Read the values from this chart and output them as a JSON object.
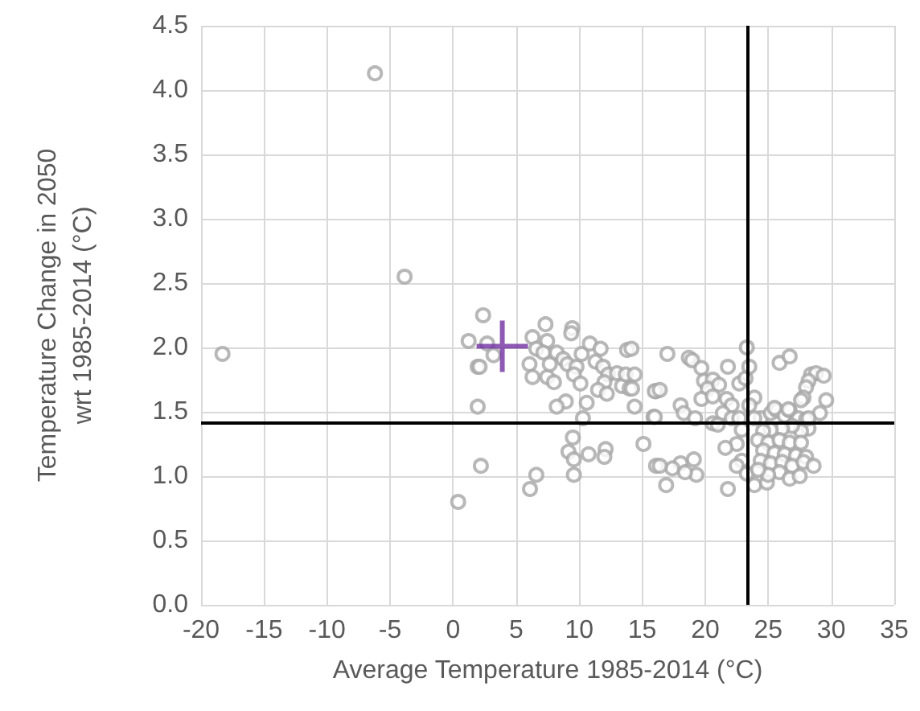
{
  "chart_data": {
    "type": "scatter",
    "xlabel": "Average Temperature 1985-2014 (°C)",
    "ylabel": "Temperature Change in 2050\nwrt 1985-2014 (°C)",
    "xlim": [
      -20,
      35
    ],
    "xticks": [
      -20,
      -15,
      -10,
      -5,
      0,
      5,
      10,
      15,
      20,
      25,
      30,
      35
    ],
    "ylim": [
      0,
      4.5
    ],
    "yticks": [
      {
        "value": 0,
        "label": "0.0"
      },
      0.5,
      {
        "value": 1,
        "label": "1.0"
      },
      1.5,
      {
        "value": 2,
        "label": "2.0"
      },
      2.5,
      {
        "value": 3,
        "label": "3.0"
      },
      3.5,
      {
        "value": 4,
        "label": "4.0"
      },
      4.5
    ],
    "grid": true,
    "marker": "circle",
    "ref_lines": [
      {
        "axis": "x",
        "value": 23.4,
        "color": "#000000"
      },
      {
        "axis": "y",
        "value": 1.41,
        "color": "#000000"
      }
    ],
    "series": [
      {
        "color": "#a6a6a6",
        "x": [
          -6.2,
          -3.85,
          -18.3,
          1.23,
          0.4,
          1.95,
          2.2,
          2.38,
          1.95,
          2.7,
          3.2,
          2.1,
          7.33,
          6.3,
          7.46,
          9.45,
          9.37,
          6.6,
          7.16,
          6.06,
          6.3,
          7.46,
          8.0,
          7.67,
          8.22,
          8.73,
          9.07,
          9.79,
          9.58,
          10.1,
          10.2,
          10.85,
          11.7,
          11.3,
          11.9,
          12.3,
          12.0,
          11.5,
          12.2,
          13.0,
          13.4,
          14.0,
          13.7,
          14.4,
          13.8,
          14.15,
          16.1,
          14.4,
          15.9,
          10.6,
          8.94,
          8.22,
          10.3,
          9.5,
          9.15,
          9.58,
          10.75,
          12.1,
          12.0,
          9.58,
          15.1,
          6.6,
          6.1,
          16.1,
          14.2,
          17.0,
          18.7,
          18.97,
          19.7,
          16.0,
          16.4,
          16.0,
          18.05,
          18.3,
          19.2,
          19.9,
          20.6,
          20.2,
          21.1,
          19.7,
          20.6,
          21.8,
          22.7,
          23.2,
          23.5,
          23.3,
          23.9,
          21.7,
          22.1,
          21.4,
          20.6,
          21.0,
          22.1,
          22.7,
          22.9,
          22.5,
          21.6,
          22.9,
          22.5,
          21.8,
          19.3,
          19.1,
          18.05,
          17.4,
          16.4,
          16.9,
          18.4,
          23.9,
          24.9,
          23.3,
          24.4,
          25.2,
          25.7,
          26.3,
          26.7,
          27.4,
          28.0,
          28.2,
          27.6,
          26.9,
          26.1,
          25.2,
          24.6,
          24.2,
          25.0,
          25.9,
          26.7,
          27.6,
          24.6,
          25.5,
          26.3,
          27.2,
          28.0,
          24.4,
          25.2,
          26.1,
          26.9,
          27.8,
          28.6,
          25.9,
          26.7,
          27.5,
          25.0,
          24.2,
          25.9,
          26.7,
          28.4,
          28.8,
          29.4,
          28.2,
          28.0,
          27.8,
          27.6,
          29.6,
          29.1,
          28.2,
          25.5,
          26.6,
          23.5,
          23.9
        ],
        "values": [
          4.13,
          2.55,
          1.95,
          2.05,
          0.8,
          1.54,
          1.08,
          2.25,
          1.85,
          2.03,
          1.94,
          1.85,
          2.18,
          2.08,
          2.05,
          2.15,
          2.11,
          1.99,
          1.96,
          1.87,
          1.77,
          1.77,
          1.73,
          1.87,
          1.96,
          1.91,
          1.87,
          1.85,
          1.79,
          1.72,
          1.95,
          2.03,
          1.99,
          1.89,
          1.85,
          1.79,
          1.73,
          1.67,
          1.64,
          1.8,
          1.7,
          1.68,
          1.79,
          1.79,
          1.98,
          1.99,
          1.66,
          1.54,
          1.46,
          1.57,
          1.58,
          1.54,
          1.45,
          1.3,
          1.19,
          1.13,
          1.17,
          1.21,
          1.15,
          1.01,
          1.25,
          1.01,
          0.9,
          1.08,
          1.68,
          1.95,
          1.92,
          1.9,
          1.84,
          1.66,
          1.67,
          1.46,
          1.55,
          1.49,
          1.45,
          1.74,
          1.75,
          1.68,
          1.71,
          1.6,
          1.62,
          1.85,
          1.72,
          1.76,
          1.85,
          2.0,
          1.61,
          1.6,
          1.55,
          1.49,
          1.41,
          1.4,
          1.45,
          1.45,
          1.36,
          1.25,
          1.22,
          1.12,
          1.08,
          0.9,
          1.01,
          1.13,
          1.1,
          1.06,
          1.08,
          0.93,
          1.03,
          0.93,
          0.95,
          1.02,
          1.45,
          1.49,
          1.51,
          1.47,
          1.51,
          1.45,
          1.44,
          1.37,
          1.35,
          1.39,
          1.37,
          1.36,
          1.35,
          1.28,
          1.26,
          1.28,
          1.26,
          1.26,
          1.2,
          1.18,
          1.17,
          1.16,
          1.15,
          1.12,
          1.1,
          1.11,
          1.08,
          1.11,
          1.08,
          1.03,
          0.98,
          1.0,
          1.01,
          1.05,
          1.88,
          1.93,
          1.79,
          1.8,
          1.78,
          1.74,
          1.69,
          1.61,
          1.59,
          1.59,
          1.49,
          1.45,
          1.53,
          1.52,
          1.55,
          1.45
        ]
      },
      {
        "color": "#7030a0",
        "marker": "cross",
        "x": [
          3.9
        ],
        "values": [
          2.01
        ]
      }
    ]
  }
}
